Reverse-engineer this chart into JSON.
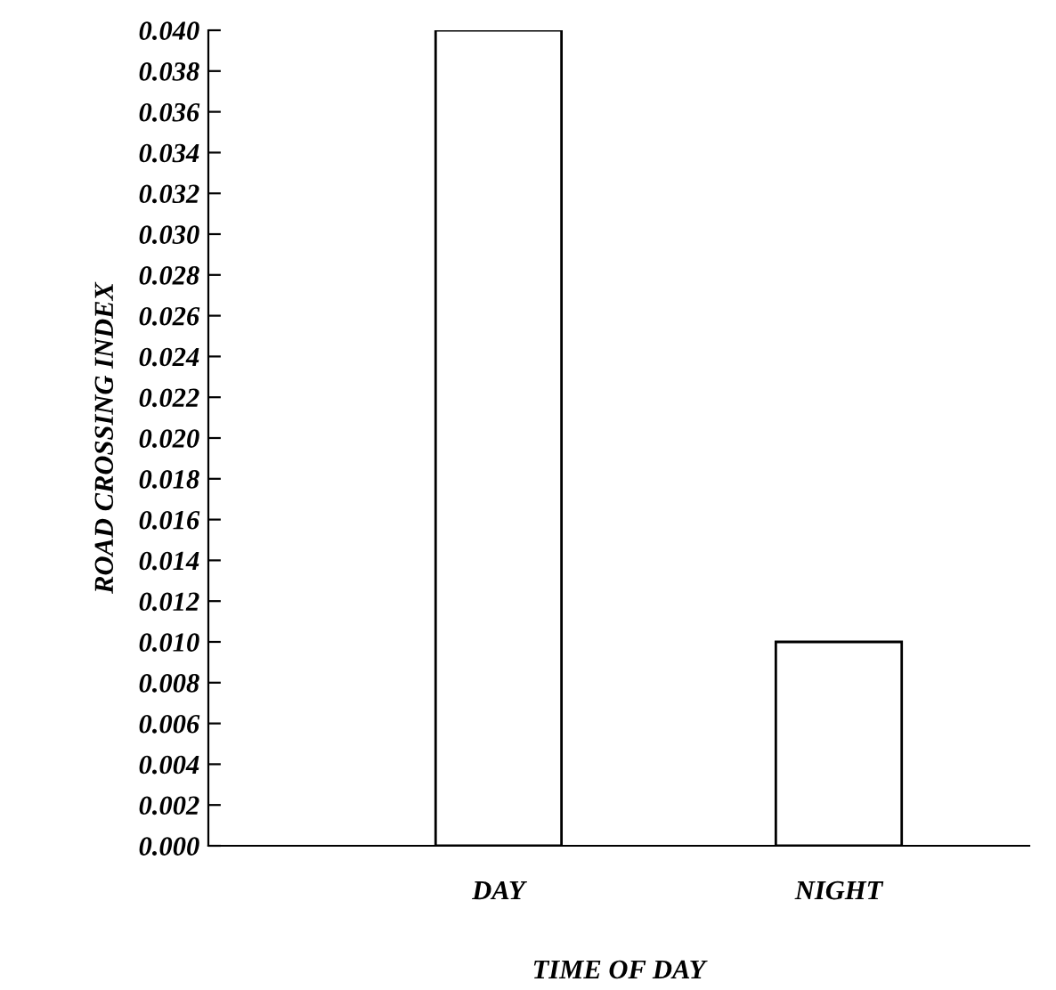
{
  "chart_data": {
    "type": "bar",
    "xlabel": "TIME OF DAY",
    "ylabel": "ROAD CROSSING INDEX",
    "categories": [
      "DAY",
      "NIGHT"
    ],
    "values": [
      0.04,
      0.01
    ],
    "color": "#ffffff",
    "ylim": [
      0,
      0.04
    ],
    "yticks": [
      {
        "value": 0,
        "label": "0.000"
      },
      {
        "value": 0.002,
        "label": "0.002"
      },
      {
        "value": 0.004,
        "label": "0.004"
      },
      {
        "value": 0.006,
        "label": "0.006"
      },
      {
        "value": 0.008,
        "label": "0.008"
      },
      {
        "value": 0.01,
        "label": "0.010"
      },
      {
        "value": 0.012,
        "label": "0.012"
      },
      {
        "value": 0.014,
        "label": "0.014"
      },
      {
        "value": 0.016,
        "label": "0.016"
      },
      {
        "value": 0.018,
        "label": "0.018"
      },
      {
        "value": 0.02,
        "label": "0.020"
      },
      {
        "value": 0.022,
        "label": "0.022"
      },
      {
        "value": 0.024,
        "label": "0.024"
      },
      {
        "value": 0.026,
        "label": "0.026"
      },
      {
        "value": 0.028,
        "label": "0.028"
      },
      {
        "value": 0.03,
        "label": "0.030"
      },
      {
        "value": 0.032,
        "label": "0.032"
      },
      {
        "value": 0.034,
        "label": "0.034"
      },
      {
        "value": 0.036,
        "label": "0.036"
      },
      {
        "value": 0.038,
        "label": "0.038"
      },
      {
        "value": 0.04,
        "label": "0.040"
      }
    ],
    "grid": false,
    "legend": false
  }
}
